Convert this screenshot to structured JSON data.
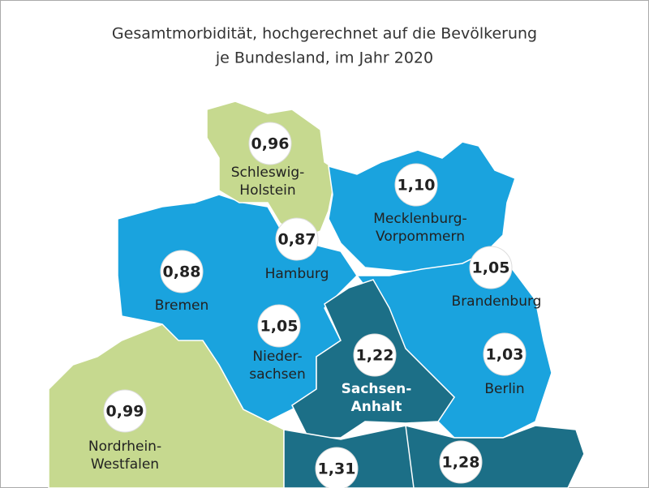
{
  "title": [
    "Gesamtmorbidität, hochgerechnet auf die Bevölkerung",
    "je Bundesland, im Jahr 2020"
  ],
  "regions": [
    {
      "name": [
        "Schleswig-",
        "Holstein"
      ],
      "value": "0,96"
    },
    {
      "name": [
        "Mecklenburg-",
        "Vorpommern"
      ],
      "value": "1,10"
    },
    {
      "name": [
        "Hamburg"
      ],
      "value": "0,87"
    },
    {
      "name": [
        "Bremen"
      ],
      "value": "0,88"
    },
    {
      "name": [
        "Nieder-",
        "sachsen"
      ],
      "value": "1,05"
    },
    {
      "name": [
        "Brandenburg"
      ],
      "value": "1,05"
    },
    {
      "name": [
        "Berlin"
      ],
      "value": "1,03"
    },
    {
      "name": [
        "Sachsen-",
        "Anhalt"
      ],
      "value": "1,22"
    },
    {
      "name": [
        "Nordrhein-",
        "Westfalen"
      ],
      "value": "0,99"
    },
    {
      "name": [],
      "value": "1,31"
    },
    {
      "name": [],
      "value": "1,28"
    }
  ]
}
